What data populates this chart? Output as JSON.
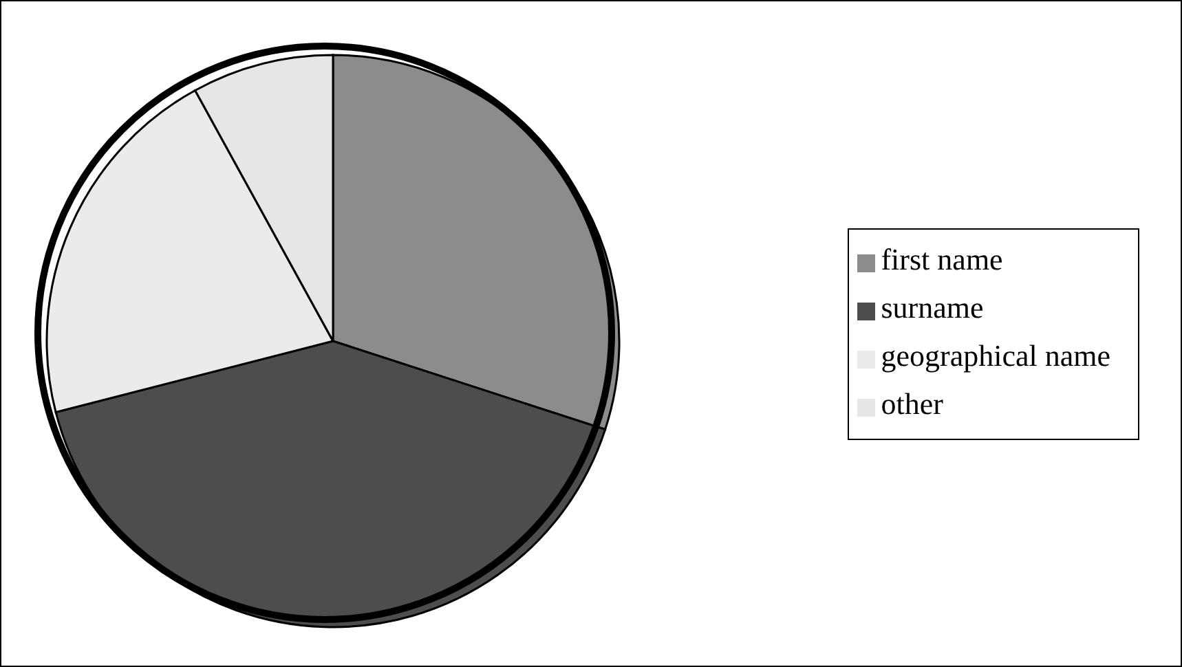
{
  "chart_data": {
    "type": "pie",
    "categories": [
      "first name",
      "surname",
      "geographical name",
      "other"
    ],
    "values": [
      30,
      41,
      21,
      8
    ],
    "colors": [
      "#8c8c8c",
      "#4d4d4d",
      "#ebebeb",
      "#e6e6e6"
    ],
    "legend": "right"
  }
}
